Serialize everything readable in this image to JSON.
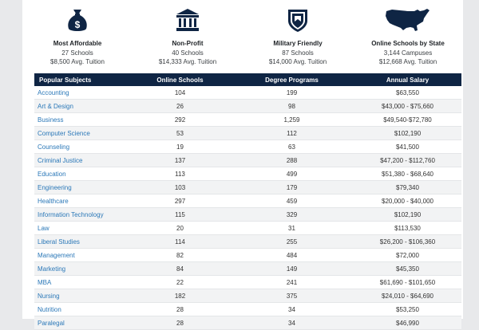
{
  "cards": [
    {
      "title": "Most Affordable",
      "line1": "27 Schools",
      "line2": "$8,500 Avg. Tuition",
      "icon": "money-bag-icon"
    },
    {
      "title": "Non-Profit",
      "line1": "40 Schools",
      "line2": "$14,333 Avg. Tuition",
      "icon": "building-icon"
    },
    {
      "title": "Military Friendly",
      "line1": "87 Schools",
      "line2": "$14,000 Avg. Tuition",
      "icon": "shield-icon"
    },
    {
      "title": "Online Schools by State",
      "line1": "3,144 Campuses",
      "line2": "$12,668 Avg. Tuition",
      "icon": "usa-map-icon"
    }
  ],
  "table": {
    "headers": [
      "Popular Subjects",
      "Online Schools",
      "Degree Programs",
      "Annual Salary"
    ],
    "rows": [
      [
        "Accounting",
        "104",
        "199",
        "$63,550"
      ],
      [
        "Art & Design",
        "26",
        "98",
        "$43,000 - $75,660"
      ],
      [
        "Business",
        "292",
        "1,259",
        "$49,540-$72,780"
      ],
      [
        "Computer Science",
        "53",
        "112",
        "$102,190"
      ],
      [
        "Counseling",
        "19",
        "63",
        "$41,500"
      ],
      [
        "Criminal Justice",
        "137",
        "288",
        "$47,200 - $112,760"
      ],
      [
        "Education",
        "113",
        "499",
        "$51,380 - $68,640"
      ],
      [
        "Engineering",
        "103",
        "179",
        "$79,340"
      ],
      [
        "Healthcare",
        "297",
        "459",
        "$20,000 - $40,000"
      ],
      [
        "Information Technology",
        "115",
        "329",
        "$102,190"
      ],
      [
        "Law",
        "20",
        "31",
        "$113,530"
      ],
      [
        "Liberal Studies",
        "114",
        "255",
        "$26,200 - $106,360"
      ],
      [
        "Management",
        "82",
        "484",
        "$72,000"
      ],
      [
        "Marketing",
        "84",
        "149",
        "$45,350"
      ],
      [
        "MBA",
        "22",
        "241",
        "$61,690 - $101,650"
      ],
      [
        "Nursing",
        "182",
        "375",
        "$24,010 - $64,690"
      ],
      [
        "Nutrition",
        "28",
        "34",
        "$53,250"
      ],
      [
        "Paralegal",
        "28",
        "34",
        "$46,990"
      ]
    ]
  },
  "colors": {
    "header_bg": "#0f2544",
    "link": "#2b78b8",
    "icon": "#0f2544"
  }
}
